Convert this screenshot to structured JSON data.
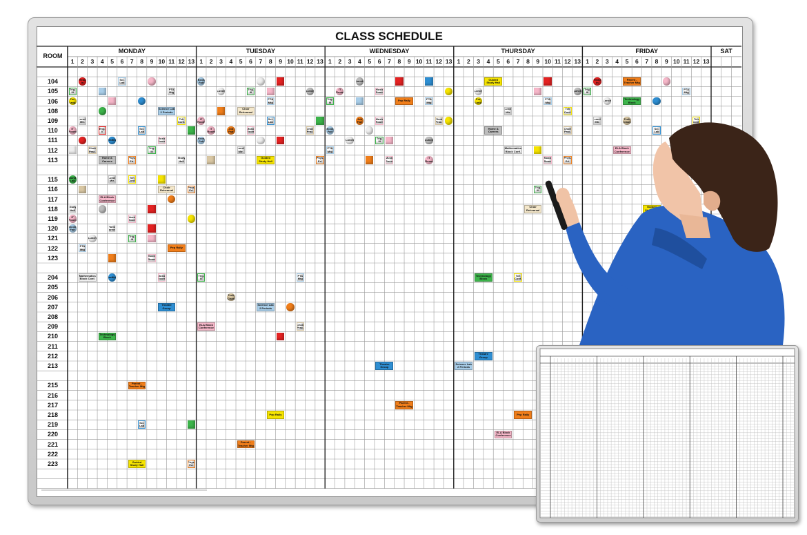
{
  "board": {
    "title": "CLASS SCHEDULE",
    "room_header": "ROOM",
    "days": [
      "MONDAY",
      "TUESDAY",
      "WEDNESDAY",
      "THURSDAY",
      "FRIDAY"
    ],
    "weekend_day": "SAT",
    "periods": [
      "1",
      "2",
      "3",
      "4",
      "5",
      "6",
      "7",
      "8",
      "9",
      "10",
      "11",
      "12",
      "13"
    ],
    "rooms": [
      "",
      "104",
      "105",
      "106",
      "108",
      "109",
      "110",
      "111",
      "112",
      "113",
      "",
      "115",
      "116",
      "117",
      "118",
      "119",
      "120",
      "121",
      "122",
      "123",
      "",
      "204",
      "205",
      "206",
      "207",
      "208",
      "209",
      "210",
      "211",
      "212",
      "213",
      "",
      "215",
      "216",
      "217",
      "218",
      "219",
      "220",
      "221",
      "222",
      "223",
      "",
      ""
    ],
    "magnet_colors": {
      "red": "#e42222",
      "pink": "#f6b7c9",
      "lightblue": "#a8cde8",
      "blue": "#2e8ed2",
      "green": "#3cb44a",
      "yellow": "#f6e400",
      "orange": "#f07e1a",
      "gray": "#bdbdbd",
      "white": "#efefef",
      "tan": "#d9c7a3",
      "beige": "#f4e7ca"
    },
    "magnets": [
      [
        "104",
        0,
        2,
        1,
        "c",
        "red",
        "Read In"
      ],
      [
        "104",
        0,
        6,
        1,
        "s",
        "lightblue",
        "Sci. Lab"
      ],
      [
        "104",
        0,
        9,
        1,
        "c",
        "pink",
        ""
      ],
      [
        "105",
        0,
        1,
        1,
        "s",
        "green",
        "Trig. III"
      ],
      [
        "105",
        0,
        4,
        1,
        "s",
        "lightblue",
        ""
      ],
      [
        "105",
        0,
        11,
        1,
        "s",
        "gray",
        "PTA Mtg"
      ],
      [
        "106",
        0,
        1,
        1,
        "c",
        "yellow",
        "For. Lang."
      ],
      [
        "106",
        0,
        5,
        1,
        "s",
        "pink",
        ""
      ],
      [
        "106",
        0,
        8,
        1,
        "c",
        "blue",
        ""
      ],
      [
        "108",
        0,
        4,
        1,
        "c",
        "green",
        ""
      ],
      [
        "108",
        0,
        10,
        2,
        "r",
        "lightblue",
        "Science Lab 2 Periods"
      ],
      [
        "109",
        0,
        2,
        1,
        "s",
        "gray",
        "Lunch Mtr."
      ],
      [
        "109",
        0,
        12,
        1,
        "s",
        "yellow",
        "Tch Conf."
      ],
      [
        "110",
        0,
        1,
        1,
        "c",
        "pink",
        "IT Room"
      ],
      [
        "110",
        0,
        4,
        1,
        "s",
        "red",
        "Eng. II"
      ],
      [
        "110",
        0,
        8,
        1,
        "s",
        "blue",
        "Sci. Lab"
      ],
      [
        "110",
        0,
        13,
        1,
        "s",
        "green",
        ""
      ],
      [
        "111",
        0,
        2,
        1,
        "c",
        "red",
        ""
      ],
      [
        "111",
        0,
        5,
        1,
        "c",
        "blue",
        "Drafting"
      ],
      [
        "111",
        0,
        10,
        1,
        "s",
        "pink",
        "Music Room"
      ],
      [
        "112",
        0,
        1,
        1,
        "s",
        "white",
        ""
      ],
      [
        "112",
        0,
        3,
        1,
        "s",
        "tan",
        "Choir Prac."
      ],
      [
        "112",
        0,
        9,
        1,
        "s",
        "green",
        "Trig. III"
      ],
      [
        "113",
        0,
        4,
        2,
        "r",
        "gray",
        "Home & Careers"
      ],
      [
        "113",
        0,
        7,
        1,
        "s",
        "orange",
        "Phys. Ed."
      ],
      [
        "113",
        0,
        12,
        1,
        "s",
        "white",
        "Study Hall"
      ],
      [
        "115",
        0,
        1,
        1,
        "c",
        "green",
        "Band Lab"
      ],
      [
        "115",
        0,
        5,
        1,
        "s",
        "gray",
        "Lunch Mtr."
      ],
      [
        "115",
        0,
        7,
        1,
        "s",
        "yellow",
        "Tch Conf."
      ],
      [
        "115",
        0,
        10,
        1,
        "s",
        "yellow",
        ""
      ],
      [
        "116",
        0,
        2,
        1,
        "s",
        "tan",
        ""
      ],
      [
        "116",
        0,
        10,
        2,
        "r",
        "beige",
        "Choir Rehearsal"
      ],
      [
        "116",
        0,
        13,
        1,
        "s",
        "orange",
        "Phys. Ed."
      ],
      [
        "117",
        0,
        4,
        2,
        "r",
        "pink",
        "ELA Block Conference"
      ],
      [
        "117",
        0,
        11,
        1,
        "c",
        "orange",
        ""
      ],
      [
        "118",
        0,
        1,
        1,
        "s",
        "white",
        "Study Hall"
      ],
      [
        "118",
        0,
        4,
        1,
        "c",
        "gray",
        ""
      ],
      [
        "118",
        0,
        9,
        1,
        "s",
        "red",
        ""
      ],
      [
        "119",
        0,
        1,
        1,
        "c",
        "pink",
        "IT Room"
      ],
      [
        "119",
        0,
        7,
        1,
        "s",
        "pink",
        "Music Room"
      ],
      [
        "119",
        0,
        13,
        1,
        "c",
        "yellow",
        ""
      ],
      [
        "120",
        0,
        1,
        1,
        "c",
        "lightblue",
        "Book Fair"
      ],
      [
        "120",
        0,
        5,
        1,
        "s",
        "white",
        "Home Careers"
      ],
      [
        "120",
        0,
        9,
        1,
        "s",
        "red",
        ""
      ],
      [
        "121",
        0,
        3,
        1,
        "c",
        "white",
        "Lunch"
      ],
      [
        "121",
        0,
        7,
        1,
        "s",
        "green",
        "Trig. III"
      ],
      [
        "121",
        0,
        9,
        1,
        "s",
        "pink",
        ""
      ],
      [
        "122",
        0,
        2,
        1,
        "s",
        "lightblue",
        "PTA Mtg"
      ],
      [
        "122",
        0,
        11,
        2,
        "r",
        "orange",
        "Pep Rally"
      ],
      [
        "123",
        0,
        5,
        1,
        "s",
        "orange",
        ""
      ],
      [
        "123",
        0,
        9,
        1,
        "s",
        "pink",
        "Music Room"
      ],
      [
        "204",
        0,
        2,
        2,
        "r",
        "white",
        "Mathematics Block Conf."
      ],
      [
        "204",
        0,
        5,
        1,
        "c",
        "blue",
        "Drafting"
      ],
      [
        "204",
        0,
        10,
        1,
        "s",
        "pink",
        "Music Room"
      ],
      [
        "207",
        0,
        10,
        2,
        "r",
        "blue",
        "Theatre Group"
      ],
      [
        "210",
        0,
        4,
        2,
        "r",
        "green",
        "Technology Block"
      ],
      [
        "215",
        0,
        7,
        2,
        "r",
        "orange",
        "Parent - Teacher Mtg"
      ],
      [
        "219",
        0,
        8,
        1,
        "s",
        "blue",
        "Sci. Lab"
      ],
      [
        "219",
        0,
        13,
        1,
        "s",
        "green",
        ""
      ],
      [
        "223",
        0,
        7,
        2,
        "r",
        "yellow",
        "Guided Study Hall"
      ],
      [
        "223",
        0,
        13,
        1,
        "s",
        "orange",
        "Phys. Ed."
      ],
      [
        "104",
        1,
        1,
        1,
        "c",
        "lightblue",
        "Book Fair"
      ],
      [
        "104",
        1,
        7,
        1,
        "c",
        "white",
        ""
      ],
      [
        "104",
        1,
        9,
        1,
        "s",
        "red",
        ""
      ],
      [
        "105",
        1,
        3,
        1,
        "c",
        "white",
        "Lunch"
      ],
      [
        "105",
        1,
        6,
        1,
        "s",
        "green",
        "Trig. III"
      ],
      [
        "105",
        1,
        8,
        1,
        "s",
        "pink",
        ""
      ],
      [
        "105",
        1,
        12,
        1,
        "c",
        "gray",
        "Lunch"
      ],
      [
        "106",
        1,
        8,
        1,
        "s",
        "lightblue",
        "PTA Mtg"
      ],
      [
        "108",
        1,
        3,
        1,
        "s",
        "orange",
        ""
      ],
      [
        "108",
        1,
        5,
        2,
        "r",
        "beige",
        "Choir Rehearsal"
      ],
      [
        "109",
        1,
        1,
        1,
        "c",
        "pink",
        "IT Room"
      ],
      [
        "109",
        1,
        8,
        1,
        "s",
        "blue",
        "Sci. Lab"
      ],
      [
        "109",
        1,
        13,
        1,
        "s",
        "green",
        ""
      ],
      [
        "110",
        1,
        2,
        1,
        "c",
        "pink",
        "IT Room"
      ],
      [
        "110",
        1,
        4,
        1,
        "c",
        "orange",
        "Job Fair"
      ],
      [
        "110",
        1,
        6,
        1,
        "s",
        "pink",
        "Music Room"
      ],
      [
        "110",
        1,
        12,
        1,
        "s",
        "tan",
        "Choir Prac."
      ],
      [
        "111",
        1,
        1,
        1,
        "c",
        "lightblue",
        "Book Fair"
      ],
      [
        "111",
        1,
        7,
        1,
        "c",
        "white",
        ""
      ],
      [
        "111",
        1,
        9,
        1,
        "s",
        "red",
        ""
      ],
      [
        "112",
        1,
        5,
        1,
        "s",
        "gray",
        "Lunch Mtr."
      ],
      [
        "113",
        1,
        2,
        1,
        "s",
        "tan",
        ""
      ],
      [
        "113",
        1,
        7,
        2,
        "r",
        "yellow",
        "Guided Study Hall"
      ],
      [
        "113",
        1,
        13,
        1,
        "s",
        "orange",
        "Phys. Ed."
      ],
      [
        "204",
        1,
        1,
        1,
        "s",
        "green",
        "Trig. III"
      ],
      [
        "204",
        1,
        11,
        1,
        "s",
        "lightblue",
        "PTA Mtg"
      ],
      [
        "206",
        1,
        4,
        1,
        "c",
        "tan",
        "Tech Class"
      ],
      [
        "207",
        1,
        7,
        2,
        "r",
        "lightblue",
        "Science Lab 2 Periods"
      ],
      [
        "207",
        1,
        10,
        1,
        "c",
        "orange",
        ""
      ],
      [
        "209",
        1,
        1,
        2,
        "r",
        "pink",
        "ELA Block Conference"
      ],
      [
        "209",
        1,
        11,
        1,
        "s",
        "tan",
        "Choir Prac."
      ],
      [
        "210",
        1,
        9,
        1,
        "s",
        "red",
        ""
      ],
      [
        "218",
        1,
        8,
        2,
        "r",
        "yellow",
        "Pep Rally"
      ],
      [
        "221",
        1,
        5,
        2,
        "r",
        "orange",
        "Parent - Teacher Mtg"
      ],
      [
        "104",
        2,
        4,
        1,
        "c",
        "gray",
        "Lunch"
      ],
      [
        "104",
        2,
        8,
        1,
        "s",
        "red",
        ""
      ],
      [
        "104",
        2,
        11,
        1,
        "s",
        "blue",
        ""
      ],
      [
        "105",
        2,
        2,
        1,
        "c",
        "pink",
        "IT Room"
      ],
      [
        "105",
        2,
        6,
        1,
        "s",
        "pink",
        "Music Room"
      ],
      [
        "105",
        2,
        13,
        1,
        "c",
        "yellow",
        ""
      ],
      [
        "106",
        2,
        1,
        1,
        "s",
        "green",
        "Trig. III"
      ],
      [
        "106",
        2,
        4,
        1,
        "s",
        "lightblue",
        ""
      ],
      [
        "106",
        2,
        8,
        2,
        "r",
        "orange",
        "Pep Rally"
      ],
      [
        "106",
        2,
        11,
        1,
        "s",
        "lightblue",
        "PTA Mtg"
      ],
      [
        "109",
        2,
        4,
        1,
        "c",
        "orange",
        "Job Fair"
      ],
      [
        "109",
        2,
        6,
        1,
        "s",
        "pink",
        "Music Room"
      ],
      [
        "109",
        2,
        12,
        1,
        "s",
        "tan",
        "Choir Prac."
      ],
      [
        "109",
        2,
        13,
        1,
        "c",
        "yellow",
        ""
      ],
      [
        "110",
        2,
        1,
        1,
        "c",
        "lightblue",
        "Book Fair"
      ],
      [
        "110",
        2,
        5,
        1,
        "c",
        "white",
        ""
      ],
      [
        "111",
        2,
        3,
        1,
        "c",
        "white",
        "Lunch"
      ],
      [
        "111",
        2,
        6,
        1,
        "s",
        "green",
        "Trig. III"
      ],
      [
        "111",
        2,
        7,
        1,
        "s",
        "pink",
        ""
      ],
      [
        "111",
        2,
        11,
        1,
        "c",
        "gray",
        "Lunch"
      ],
      [
        "112",
        2,
        1,
        1,
        "s",
        "lightblue",
        "PTA Mtg"
      ],
      [
        "113",
        2,
        5,
        1,
        "s",
        "orange",
        ""
      ],
      [
        "113",
        2,
        7,
        1,
        "s",
        "pink",
        "Music Room"
      ],
      [
        "113",
        2,
        11,
        1,
        "c",
        "pink",
        "IT Room"
      ],
      [
        "213",
        2,
        6,
        2,
        "r",
        "blue",
        "Theatre Group"
      ],
      [
        "217",
        2,
        8,
        2,
        "r",
        "orange",
        "Parent - Teacher Mtg"
      ],
      [
        "104",
        3,
        4,
        2,
        "r",
        "yellow",
        "Guided Study Hall"
      ],
      [
        "104",
        3,
        10,
        1,
        "s",
        "red",
        ""
      ],
      [
        "105",
        3,
        3,
        1,
        "c",
        "white",
        "Lunch"
      ],
      [
        "105",
        3,
        9,
        1,
        "s",
        "pink",
        ""
      ],
      [
        "105",
        3,
        13,
        1,
        "c",
        "gray",
        "Lunch"
      ],
      [
        "106",
        3,
        3,
        1,
        "c",
        "yellow",
        "For. Lang."
      ],
      [
        "106",
        3,
        10,
        1,
        "s",
        "lightblue",
        "PTA Mtg"
      ],
      [
        "108",
        3,
        6,
        1,
        "s",
        "gray",
        "Lunch Mtr."
      ],
      [
        "108",
        3,
        12,
        1,
        "s",
        "yellow",
        "Tch Conf."
      ],
      [
        "110",
        3,
        4,
        2,
        "r",
        "gray",
        "Home & Careers"
      ],
      [
        "110",
        3,
        12,
        1,
        "s",
        "tan",
        "Choir Prac."
      ],
      [
        "112",
        3,
        6,
        2,
        "r",
        "white",
        "Mathematics Block Conf."
      ],
      [
        "112",
        3,
        9,
        1,
        "s",
        "yellow",
        ""
      ],
      [
        "113",
        3,
        10,
        1,
        "s",
        "pink",
        "Music Room"
      ],
      [
        "113",
        3,
        12,
        1,
        "s",
        "orange",
        "Phys. Ed."
      ],
      [
        "116",
        3,
        9,
        1,
        "s",
        "green",
        "Trig. III"
      ],
      [
        "118",
        3,
        8,
        2,
        "r",
        "beige",
        "Choir Rehearsal"
      ],
      [
        "204",
        3,
        3,
        2,
        "r",
        "green",
        "Technology Block"
      ],
      [
        "204",
        3,
        7,
        1,
        "s",
        "yellow",
        "Tch Conf."
      ],
      [
        "212",
        3,
        3,
        2,
        "r",
        "blue",
        "Theatre Group"
      ],
      [
        "213",
        3,
        1,
        2,
        "r",
        "lightblue",
        "Science Lab 2 Periods"
      ],
      [
        "218",
        3,
        7,
        2,
        "r",
        "orange",
        "Pep Rally"
      ],
      [
        "220",
        3,
        5,
        2,
        "r",
        "pink",
        "ELA Block Conference"
      ],
      [
        "104",
        4,
        2,
        1,
        "c",
        "red",
        "Read In"
      ],
      [
        "104",
        4,
        5,
        2,
        "r",
        "orange",
        "Parent - Teacher Mtg"
      ],
      [
        "104",
        4,
        9,
        1,
        "c",
        "pink",
        ""
      ],
      [
        "105",
        4,
        1,
        1,
        "s",
        "green",
        "Trig. III"
      ],
      [
        "105",
        4,
        11,
        1,
        "s",
        "lightblue",
        "PTA Mtg"
      ],
      [
        "106",
        4,
        3,
        1,
        "c",
        "white",
        "Lunch"
      ],
      [
        "106",
        4,
        5,
        2,
        "r",
        "green",
        "Technology Block"
      ],
      [
        "106",
        4,
        8,
        1,
        "c",
        "blue",
        ""
      ],
      [
        "109",
        4,
        2,
        1,
        "s",
        "gray",
        "Lunch Mtr."
      ],
      [
        "109",
        4,
        5,
        1,
        "c",
        "tan",
        "Tech Class"
      ],
      [
        "109",
        4,
        12,
        1,
        "s",
        "yellow",
        "Tch Conf."
      ],
      [
        "110",
        4,
        8,
        1,
        "s",
        "blue",
        "Sci. Lab"
      ],
      [
        "112",
        4,
        4,
        2,
        "r",
        "pink",
        "ELA Block Conference"
      ],
      [
        "118",
        4,
        7,
        2,
        "r",
        "yellow",
        "Guided Study Hall"
      ]
    ]
  }
}
